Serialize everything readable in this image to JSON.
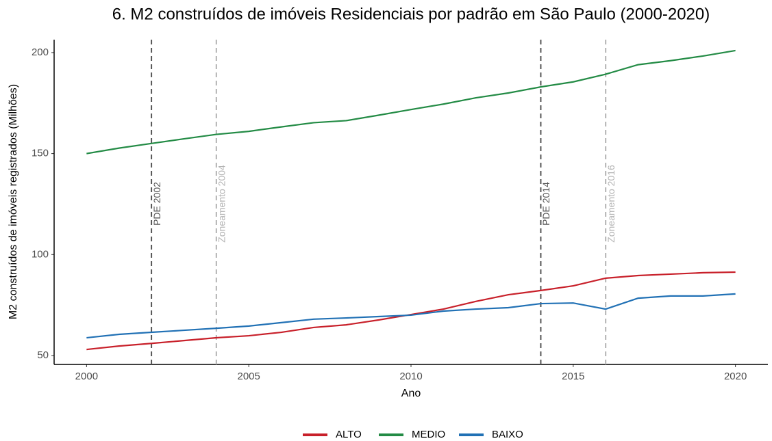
{
  "chart_data": {
    "type": "line",
    "title": "6. M2 construídos de imóveis Residenciais por padrão em São Paulo (2000-2020)",
    "x_label": "Ano",
    "y_label": "M2 construídos de imóveis registrados (Milhões)",
    "x": [
      2000,
      2001,
      2002,
      2003,
      2004,
      2005,
      2006,
      2007,
      2008,
      2009,
      2010,
      2011,
      2012,
      2013,
      2014,
      2015,
      2016,
      2017,
      2018,
      2019,
      2020
    ],
    "series": [
      {
        "name": "ALTO",
        "color": "#c8202a",
        "values": [
          53,
          54.7,
          56,
          57.4,
          58.8,
          59.8,
          61.5,
          63.9,
          65.2,
          67.6,
          70.3,
          73,
          76.8,
          80.1,
          82.2,
          84.5,
          88.3,
          89.6,
          90.3,
          91,
          91.3
        ]
      },
      {
        "name": "MEDIO",
        "color": "#238b45",
        "values": [
          150,
          152.7,
          155,
          157.3,
          159.5,
          161,
          163.2,
          165.3,
          166.3,
          169,
          171.8,
          174.5,
          177.6,
          180,
          183,
          185.5,
          189.3,
          194,
          196,
          198.3,
          201
        ]
      },
      {
        "name": "BAIXO",
        "color": "#2171b5",
        "values": [
          58.8,
          60.5,
          61.5,
          62.5,
          63.5,
          64.6,
          66.3,
          68,
          68.6,
          69.3,
          70,
          72,
          73,
          73.7,
          75.7,
          76,
          73,
          78.4,
          79.5,
          79.5,
          80.5
        ]
      }
    ],
    "reference_lines": [
      {
        "x": 2002,
        "label": "PDE 2002",
        "color": "#555555"
      },
      {
        "x": 2004,
        "label": "Zoneamento 2004",
        "color": "#b3b3b3"
      },
      {
        "x": 2014,
        "label": "PDE 2014",
        "color": "#555555"
      },
      {
        "x": 2016,
        "label": "Zoneamento 2016",
        "color": "#b3b3b3"
      }
    ],
    "xlim": [
      1999,
      2021
    ],
    "xticks": [
      2000,
      2005,
      2010,
      2015,
      2020
    ],
    "ylim": [
      45.6,
      206.4
    ],
    "yticks": [
      50,
      100,
      150,
      200
    ],
    "grid": false,
    "legend": "bottom"
  }
}
